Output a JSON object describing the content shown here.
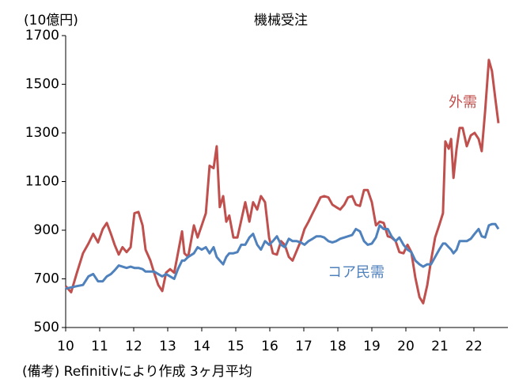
{
  "chart_data": {
    "type": "line",
    "title": "機械受注",
    "y_unit": "(10億円)",
    "footnote": "(備考) Refinitivにより作成 3ヶ月平均",
    "x": [
      2010,
      2010.16,
      2010.33,
      2010.51,
      2010.67,
      2010.81,
      2010.95,
      2011.09,
      2011.21,
      2011.33,
      2011.44,
      2011.56,
      2011.67,
      2011.79,
      2011.91,
      2012.02,
      2012.14,
      2012.26,
      2012.35,
      2012.49,
      2012.6,
      2012.72,
      2012.84,
      2012.95,
      2013.07,
      2013.19,
      2013.3,
      2013.42,
      2013.49,
      2013.6,
      2013.77,
      2013.88,
      2014,
      2014.12,
      2014.23,
      2014.35,
      2014.44,
      2014.53,
      2014.63,
      2014.72,
      2014.81,
      2014.93,
      2015.05,
      2015.16,
      2015.28,
      2015.4,
      2015.51,
      2015.63,
      2015.74,
      2015.86,
      2015.98,
      2016.09,
      2016.21,
      2016.33,
      2016.44,
      2016.56,
      2016.67,
      2016.79,
      2016.91,
      2017.02,
      2017.14,
      2017.26,
      2017.37,
      2017.49,
      2017.6,
      2017.72,
      2017.84,
      2017.95,
      2018.07,
      2018.19,
      2018.3,
      2018.42,
      2018.53,
      2018.65,
      2018.77,
      2018.88,
      2019,
      2019.12,
      2019.23,
      2019.35,
      2019.47,
      2019.58,
      2019.7,
      2019.81,
      2019.93,
      2020.05,
      2020.16,
      2020.28,
      2020.4,
      2020.51,
      2020.63,
      2020.74,
      2020.86,
      2020.98,
      2021.09,
      2021.16,
      2021.26,
      2021.33,
      2021.4,
      2021.49,
      2021.58,
      2021.67,
      2021.79,
      2021.91,
      2022.02,
      2022.14,
      2022.23,
      2022.33,
      2022.44,
      2022.53,
      2022.63,
      2022.72
    ],
    "series": [
      {
        "name": "外需",
        "color": "#c0504d",
        "values": [
          670,
          645,
          725,
          805,
          845,
          885,
          850,
          905,
          930,
          885,
          840,
          800,
          830,
          810,
          830,
          970,
          975,
          920,
          820,
          775,
          725,
          675,
          650,
          725,
          740,
          725,
          805,
          895,
          805,
          790,
          920,
          870,
          920,
          970,
          1165,
          1155,
          1245,
          995,
          1040,
          935,
          960,
          870,
          870,
          940,
          1015,
          935,
          1015,
          985,
          1040,
          1015,
          870,
          805,
          800,
          855,
          840,
          790,
          775,
          815,
          855,
          905,
          935,
          970,
          1000,
          1035,
          1040,
          1035,
          1005,
          995,
          985,
          1005,
          1035,
          1040,
          1005,
          1000,
          1065,
          1065,
          1015,
          920,
          935,
          930,
          875,
          870,
          855,
          810,
          805,
          840,
          810,
          705,
          625,
          600,
          675,
          775,
          870,
          920,
          970,
          1265,
          1235,
          1275,
          1115,
          1235,
          1320,
          1320,
          1245,
          1290,
          1300,
          1275,
          1225,
          1390,
          1600,
          1555,
          1440,
          1340
        ]
      },
      {
        "name": "コア民需",
        "color": "#4f81bd",
        "values": [
          660,
          665,
          670,
          675,
          710,
          720,
          690,
          690,
          710,
          720,
          735,
          755,
          750,
          745,
          750,
          745,
          745,
          740,
          730,
          730,
          730,
          720,
          710,
          720,
          710,
          700,
          740,
          775,
          775,
          790,
          805,
          830,
          820,
          830,
          805,
          830,
          790,
          775,
          760,
          790,
          805,
          805,
          810,
          840,
          840,
          870,
          885,
          840,
          820,
          855,
          840,
          855,
          875,
          840,
          830,
          865,
          855,
          855,
          850,
          840,
          855,
          865,
          875,
          875,
          870,
          855,
          850,
          855,
          865,
          870,
          875,
          880,
          905,
          895,
          855,
          840,
          845,
          870,
          920,
          905,
          905,
          875,
          855,
          870,
          840,
          820,
          810,
          775,
          760,
          750,
          760,
          760,
          790,
          820,
          845,
          845,
          830,
          820,
          805,
          820,
          855,
          855,
          855,
          865,
          885,
          905,
          875,
          870,
          920,
          925,
          925,
          905
        ]
      }
    ],
    "xlim": [
      2010,
      2023
    ],
    "xticks": [
      {
        "value": 2010,
        "label": "10"
      },
      {
        "value": 2011,
        "label": "11"
      },
      {
        "value": 2012,
        "label": "12"
      },
      {
        "value": 2013,
        "label": "13"
      },
      {
        "value": 2014,
        "label": "14"
      },
      {
        "value": 2015,
        "label": "15"
      },
      {
        "value": 2016,
        "label": "16"
      },
      {
        "value": 2017,
        "label": "17"
      },
      {
        "value": 2018,
        "label": "18"
      },
      {
        "value": 2019,
        "label": "19"
      },
      {
        "value": 2020,
        "label": "20"
      },
      {
        "value": 2021,
        "label": "21"
      },
      {
        "value": 2022,
        "label": "22"
      }
    ],
    "ylim": [
      500,
      1700
    ],
    "yticks": [
      500,
      700,
      900,
      1100,
      1300,
      1500,
      1700
    ],
    "grid": false
  }
}
